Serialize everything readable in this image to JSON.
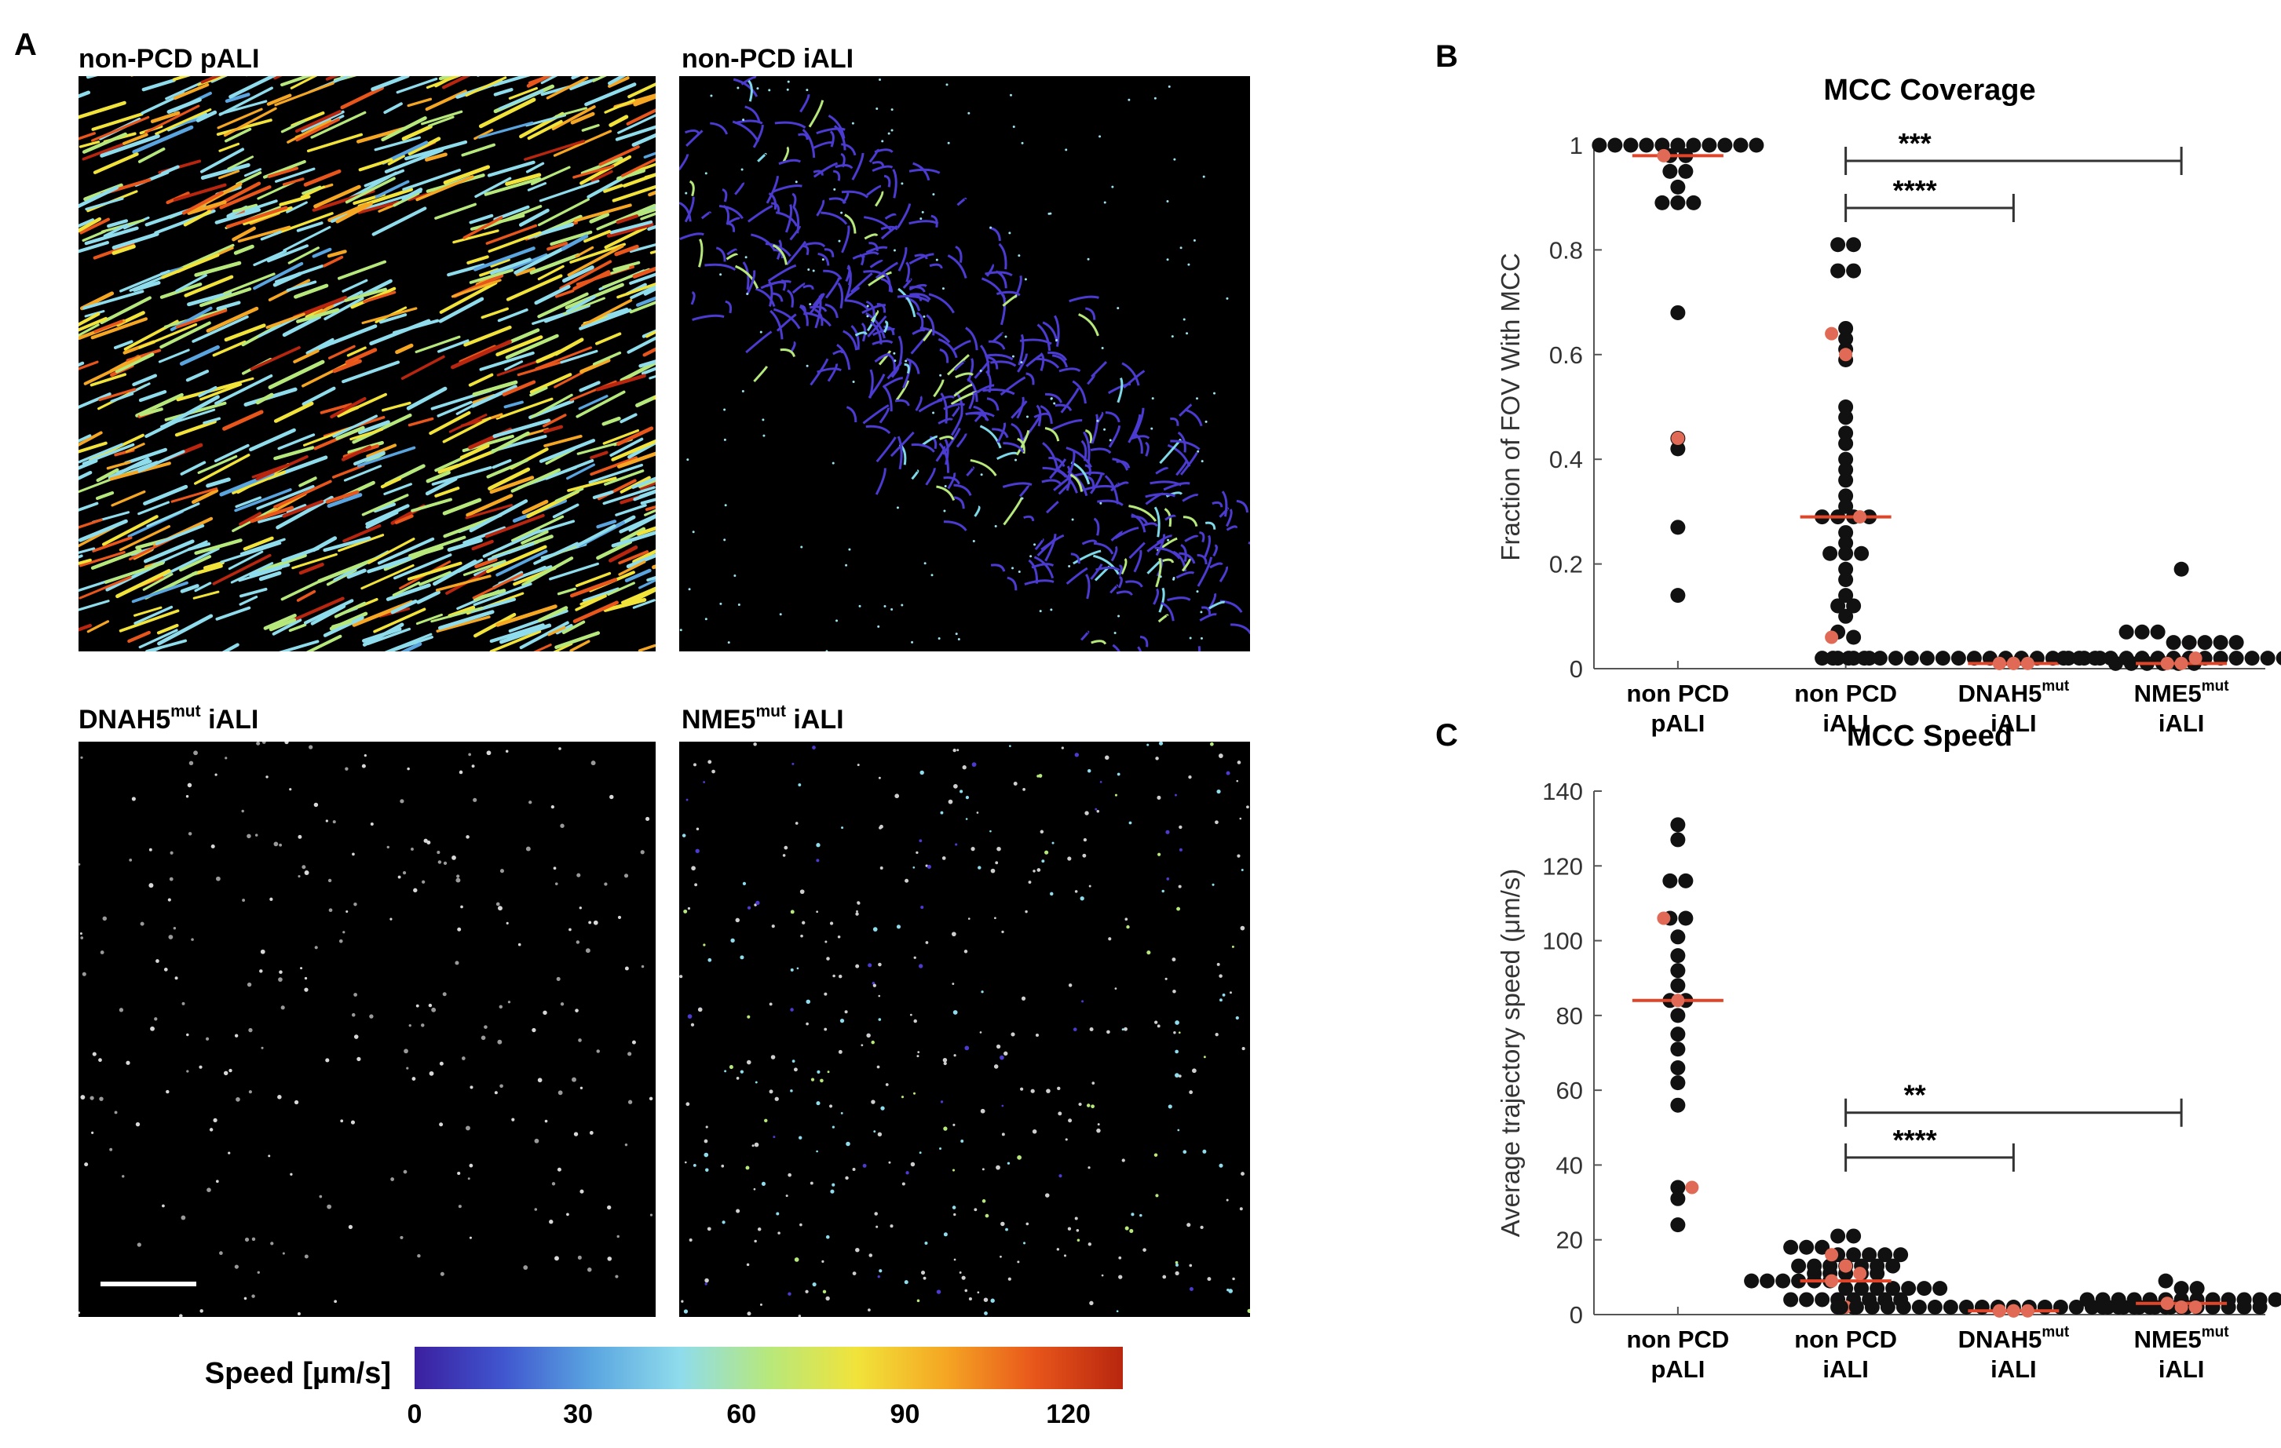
{
  "panel_labels": {
    "a": "A",
    "b": "B",
    "c": "C"
  },
  "panel_a": {
    "images": [
      {
        "title": "non-PCD pALI",
        "title_sup": "",
        "title_suffix": "",
        "pattern": "dense-tracks"
      },
      {
        "title": "non-PCD iALI",
        "title_sup": "",
        "title_suffix": "",
        "pattern": "blue-tracks"
      },
      {
        "title": "DNAH5",
        "title_sup": "mut",
        "title_suffix": " iALI",
        "pattern": "sparse-gray"
      },
      {
        "title": "NME5",
        "title_sup": "mut",
        "title_suffix": " iALI",
        "pattern": "sparse-dots"
      }
    ],
    "colorbar": {
      "label": "Speed [µm/s]",
      "ticks": [
        "0",
        "30",
        "60",
        "90",
        "120"
      ],
      "tick_values": [
        0,
        30,
        60,
        90,
        120
      ],
      "range": [
        0,
        130
      ],
      "colors": [
        "#3b1fa0",
        "#4056cf",
        "#5aa5e0",
        "#8fdcec",
        "#b7e87c",
        "#f1e33a",
        "#f5a623",
        "#e8561b",
        "#b8260f"
      ]
    }
  },
  "chart_data": [
    {
      "type": "scatter",
      "id": "B",
      "title": "MCC Coverage",
      "xlabel": "",
      "ylabel": "Fraction of FOV With MCC",
      "ylim": [
        0,
        1
      ],
      "yticks": [
        "0",
        "0.2",
        "0.4",
        "0.6",
        "0.8",
        "1"
      ],
      "ytick_values": [
        0,
        0.2,
        0.4,
        0.6,
        0.8,
        1
      ],
      "categories": [
        {
          "line1": "non PCD",
          "line1_sup": "",
          "line2": "pALI"
        },
        {
          "line1": "non PCD",
          "line1_sup": "",
          "line2": "iALI"
        },
        {
          "line1": "DNAH5",
          "line1_sup": "mut",
          "line2": "iALI"
        },
        {
          "line1": "NME5",
          "line1_sup": "mut",
          "line2": "iALI"
        }
      ],
      "groups": [
        {
          "values": [
            1,
            1,
            1,
            1,
            1,
            1,
            1,
            1,
            1,
            1,
            1,
            0.98,
            0.98,
            0.95,
            0.95,
            0.92,
            0.89,
            0.89,
            0.89,
            0.68,
            0.44,
            0.42,
            0.27,
            0.14
          ],
          "red": [
            0.98,
            0.44
          ],
          "median": 0.98
        },
        {
          "values": [
            0.81,
            0.81,
            0.76,
            0.76,
            0.65,
            0.63,
            0.61,
            0.59,
            0.5,
            0.48,
            0.45,
            0.43,
            0.4,
            0.38,
            0.36,
            0.33,
            0.31,
            0.29,
            0.29,
            0.29,
            0.29,
            0.26,
            0.24,
            0.22,
            0.22,
            0.22,
            0.19,
            0.17,
            0.14,
            0.12,
            0.12,
            0.1,
            0.07,
            0.06,
            0.02,
            0.02,
            0.02,
            0.02
          ],
          "red": [
            0.64,
            0.6,
            0.29,
            0.06
          ],
          "median": 0.29
        },
        {
          "values": [
            0.02,
            0.02,
            0.02,
            0.02,
            0.02,
            0.02,
            0.02,
            0.02,
            0.02,
            0.02,
            0.02,
            0.02,
            0.02,
            0.02,
            0.02,
            0.02,
            0.02,
            0.02,
            0.01,
            0.01,
            0.01,
            0.01,
            0.01,
            0.01
          ],
          "red": [
            0.01,
            0.01,
            0.01,
            0.01,
            0.01
          ],
          "median": 0.01
        },
        {
          "values": [
            0.19,
            0.07,
            0.07,
            0.07,
            0.05,
            0.05,
            0.05,
            0.05,
            0.05,
            0.02,
            0.02,
            0.02,
            0.02,
            0.02,
            0.02,
            0.02,
            0.02,
            0.02,
            0.02,
            0.02,
            0.02,
            0.02,
            0.02,
            0.02,
            0.02
          ],
          "red": [
            0.01,
            0.01,
            0.02
          ],
          "median": 0.01
        }
      ],
      "significance": [
        {
          "from": 1,
          "to": 2,
          "label": "****",
          "y": 0.88
        },
        {
          "from": 1,
          "to": 3,
          "label": "***",
          "y": 0.97
        }
      ]
    },
    {
      "type": "scatter",
      "id": "C",
      "title": "MCC Speed",
      "xlabel": "",
      "ylabel": "Average trajectory speed (μm/s)",
      "ylim": [
        0,
        140
      ],
      "yticks": [
        "0",
        "20",
        "40",
        "60",
        "80",
        "100",
        "120",
        "140"
      ],
      "ytick_values": [
        0,
        20,
        40,
        60,
        80,
        100,
        120,
        140
      ],
      "categories": [
        {
          "line1": "non PCD",
          "line1_sup": "",
          "line2": "pALI"
        },
        {
          "line1": "non PCD",
          "line1_sup": "",
          "line2": "iALI"
        },
        {
          "line1": "DNAH5",
          "line1_sup": "mut",
          "line2": "iALI"
        },
        {
          "line1": "NME5",
          "line1_sup": "mut",
          "line2": "iALI"
        }
      ],
      "groups": [
        {
          "values": [
            131,
            127,
            116,
            116,
            106,
            106,
            101,
            96,
            92,
            88,
            84,
            84,
            80,
            75,
            71,
            66,
            62,
            56,
            34,
            31,
            24
          ],
          "red": [
            106,
            84,
            34
          ],
          "median": 84
        },
        {
          "values": [
            21,
            21,
            18,
            18,
            18,
            16,
            16,
            16,
            16,
            16,
            13,
            13,
            13,
            13,
            13,
            13,
            13,
            11,
            11,
            11,
            11,
            11,
            9,
            9,
            9,
            9,
            9,
            9,
            7,
            7,
            7,
            7,
            7,
            7,
            7,
            4,
            4,
            4,
            4,
            4,
            4,
            4,
            4,
            2,
            2
          ],
          "red": [
            16,
            13,
            11,
            9,
            2
          ],
          "median": 9
        },
        {
          "values": [
            2,
            2,
            2,
            2,
            2,
            2,
            2,
            2,
            2,
            2,
            2,
            2,
            2,
            2,
            2,
            2,
            2,
            2,
            2,
            2,
            2,
            2,
            2
          ],
          "red": [
            1,
            1,
            1,
            1,
            1
          ],
          "median": 1
        },
        {
          "values": [
            9,
            7,
            7,
            4,
            4,
            4,
            4,
            4,
            4,
            4,
            4,
            4,
            4,
            4,
            4,
            4,
            2,
            2,
            2,
            2,
            2,
            2,
            2,
            2,
            2,
            2,
            2
          ],
          "red": [
            3,
            2,
            2
          ],
          "median": 3
        }
      ],
      "significance": [
        {
          "from": 1,
          "to": 2,
          "label": "****",
          "y": 42
        },
        {
          "from": 1,
          "to": 3,
          "label": "**",
          "y": 54
        }
      ]
    }
  ]
}
